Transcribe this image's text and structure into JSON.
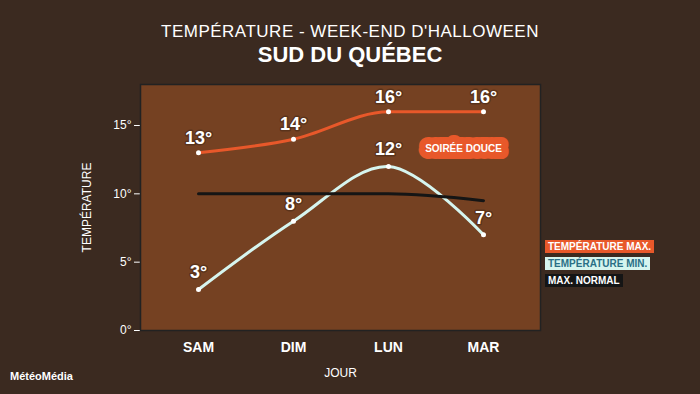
{
  "chart_data": {
    "type": "line",
    "title": "TEMPÉRATURE - WEEK-END D'HALLOWEEN",
    "subtitle": "SUD DU QUÉBEC",
    "x_label": "JOUR",
    "y_label": "TEMPÉRATURE",
    "source": "MétéoMédia",
    "annotations": [
      "SOIRÉE DOUCE"
    ],
    "categories": [
      "SAM",
      "DIM",
      "LUN",
      "MAR"
    ],
    "series": [
      {
        "name": "TEMPÉRATURE MAX.",
        "color": "#e8582a",
        "values": [
          13,
          14,
          16,
          16
        ],
        "value_labels": [
          "13°",
          "14°",
          "16°",
          "16°"
        ],
        "data_labels": true
      },
      {
        "name": "TEMPÉRATURE MIN.",
        "color": "#d6f5ef",
        "values": [
          3,
          8,
          12,
          7
        ],
        "value_labels": [
          "3°",
          "8°",
          "12°",
          "7°"
        ],
        "data_labels": true
      },
      {
        "name": "MAX. NORMAL",
        "color": "#151515",
        "values": [
          10,
          10,
          10,
          9.5
        ],
        "data_labels": false
      }
    ],
    "ylim": [
      0,
      18
    ],
    "yticks": [
      {
        "value": 0,
        "label": "0°"
      },
      {
        "value": 5,
        "label": "5°"
      },
      {
        "value": 10,
        "label": "10°"
      },
      {
        "value": 15,
        "label": "15°"
      }
    ],
    "grid": false,
    "legend": "right"
  }
}
